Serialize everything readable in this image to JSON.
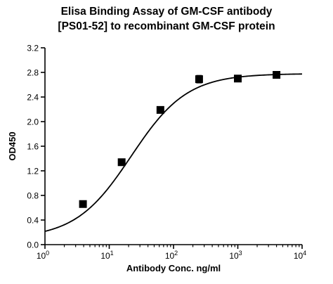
{
  "chart_data": {
    "type": "scatter",
    "title_lines": [
      "Elisa Binding Assay of GM-CSF antibody",
      "[PS01-52] to recombinant GM-CSF protein"
    ],
    "xlabel": "Antibody Conc. ng/ml",
    "ylabel": "OD450",
    "x_scale": "log10",
    "xlim": [
      1,
      10000
    ],
    "ylim": [
      0,
      3.2
    ],
    "x_ticks": [
      1,
      10,
      100,
      1000,
      10000
    ],
    "x_tick_labels": [
      {
        "base": "10",
        "exp": "0"
      },
      {
        "base": "10",
        "exp": "1"
      },
      {
        "base": "10",
        "exp": "2"
      },
      {
        "base": "10",
        "exp": "3"
      },
      {
        "base": "10",
        "exp": "4"
      }
    ],
    "y_ticks": [
      0,
      0.4,
      0.8,
      1.2,
      1.6,
      2.0,
      2.4,
      2.8,
      3.2
    ],
    "y_tick_labels": [
      "0.0",
      "0.4",
      "0.8",
      "1.2",
      "1.6",
      "2.0",
      "2.4",
      "2.8",
      "3.2"
    ],
    "grid": false,
    "series": [
      {
        "marker": "square",
        "color": "#000000",
        "points": [
          {
            "x": 3.9,
            "y": 0.66,
            "err": 0.02
          },
          {
            "x": 15.6,
            "y": 1.34,
            "err": 0.02
          },
          {
            "x": 62.5,
            "y": 2.19,
            "err": 0.02
          },
          {
            "x": 250,
            "y": 2.69,
            "err": 0.06
          },
          {
            "x": 1000,
            "y": 2.7,
            "err": 0.02
          },
          {
            "x": 4000,
            "y": 2.76,
            "err": 0.02
          }
        ]
      }
    ],
    "fit_curve": {
      "model": "4PL",
      "bottom": 0.1,
      "top": 2.78,
      "ec50": 22,
      "hill": 1.0,
      "color": "#000000"
    }
  }
}
